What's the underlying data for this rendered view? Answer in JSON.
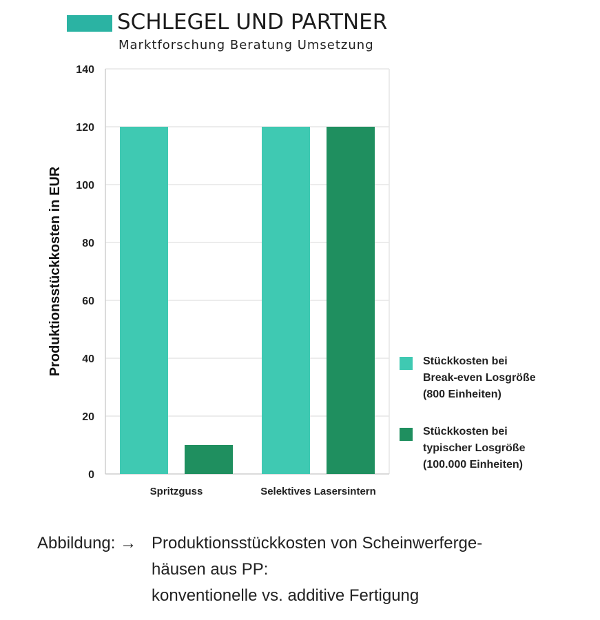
{
  "brand": {
    "name": "SCHLEGEL UND PARTNER",
    "tagline": "Marktforschung  Beratung  Umsetzung",
    "color": "#2bb3a3"
  },
  "caption": {
    "prefix": "Abbildung: →",
    "lines": [
      "Produktionsstückkosten von Scheinwerferge-",
      "häusen aus PP:",
      "konventionelle vs. additive Fertigung"
    ]
  },
  "chart_data": {
    "type": "bar",
    "categories": [
      "Spritzguss",
      "Selektives Lasersintern"
    ],
    "series": [
      {
        "name": "Stückkosten bei Break-even Losgröße (800 Einheiten)",
        "name_lines": [
          "Stückkosten bei",
          "Break-even Losgröße",
          "(800 Einheiten)"
        ],
        "values": [
          120,
          120
        ],
        "color": "#3fc9b2"
      },
      {
        "name": "Stückkosten bei typischer Losgröße (100.000 Einheiten)",
        "name_lines": [
          "Stückkosten bei",
          "typischer Losgröße",
          "(100.000 Einheiten)"
        ],
        "values": [
          10,
          120
        ],
        "color": "#1f8f5f"
      }
    ],
    "ylabel": "Produktionsstückkosten in EUR",
    "ylim": [
      0,
      140
    ],
    "yticks": [
      0,
      20,
      40,
      60,
      80,
      100,
      120,
      140
    ],
    "grid": true,
    "legend": "right"
  }
}
